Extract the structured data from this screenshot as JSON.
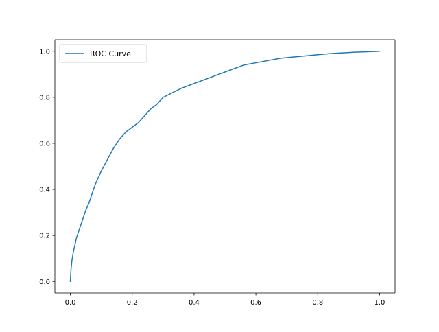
{
  "chart_data": {
    "type": "line",
    "title": "",
    "xlabel": "",
    "ylabel": "",
    "xlim": [
      -0.05,
      1.05
    ],
    "ylim": [
      -0.05,
      1.05
    ],
    "x_ticks": [
      0.0,
      0.2,
      0.4,
      0.6,
      0.8,
      1.0
    ],
    "y_ticks": [
      0.0,
      0.2,
      0.4,
      0.6,
      0.8,
      1.0
    ],
    "x_tick_labels": [
      "0.0",
      "0.2",
      "0.4",
      "0.6",
      "0.8",
      "1.0"
    ],
    "y_tick_labels": [
      "0.0",
      "0.2",
      "0.4",
      "0.6",
      "0.8",
      "1.0"
    ],
    "grid": false,
    "legend": {
      "position": "upper-left",
      "entries": [
        "ROC Curve"
      ]
    },
    "series": [
      {
        "name": "ROC Curve",
        "color": "#1f77b4",
        "x": [
          0.0,
          0.002,
          0.005,
          0.01,
          0.015,
          0.02,
          0.03,
          0.04,
          0.05,
          0.06,
          0.07,
          0.08,
          0.09,
          0.1,
          0.12,
          0.14,
          0.16,
          0.18,
          0.2,
          0.22,
          0.24,
          0.26,
          0.28,
          0.3,
          0.33,
          0.36,
          0.4,
          0.44,
          0.48,
          0.52,
          0.56,
          0.6,
          0.64,
          0.68,
          0.72,
          0.76,
          0.8,
          0.84,
          0.88,
          0.92,
          0.96,
          1.0
        ],
        "y": [
          0.0,
          0.05,
          0.09,
          0.13,
          0.16,
          0.19,
          0.23,
          0.27,
          0.31,
          0.34,
          0.38,
          0.42,
          0.45,
          0.48,
          0.53,
          0.58,
          0.62,
          0.65,
          0.67,
          0.69,
          0.72,
          0.75,
          0.77,
          0.8,
          0.82,
          0.84,
          0.86,
          0.88,
          0.9,
          0.92,
          0.94,
          0.95,
          0.96,
          0.97,
          0.975,
          0.98,
          0.985,
          0.99,
          0.993,
          0.996,
          0.998,
          1.0
        ]
      }
    ]
  }
}
